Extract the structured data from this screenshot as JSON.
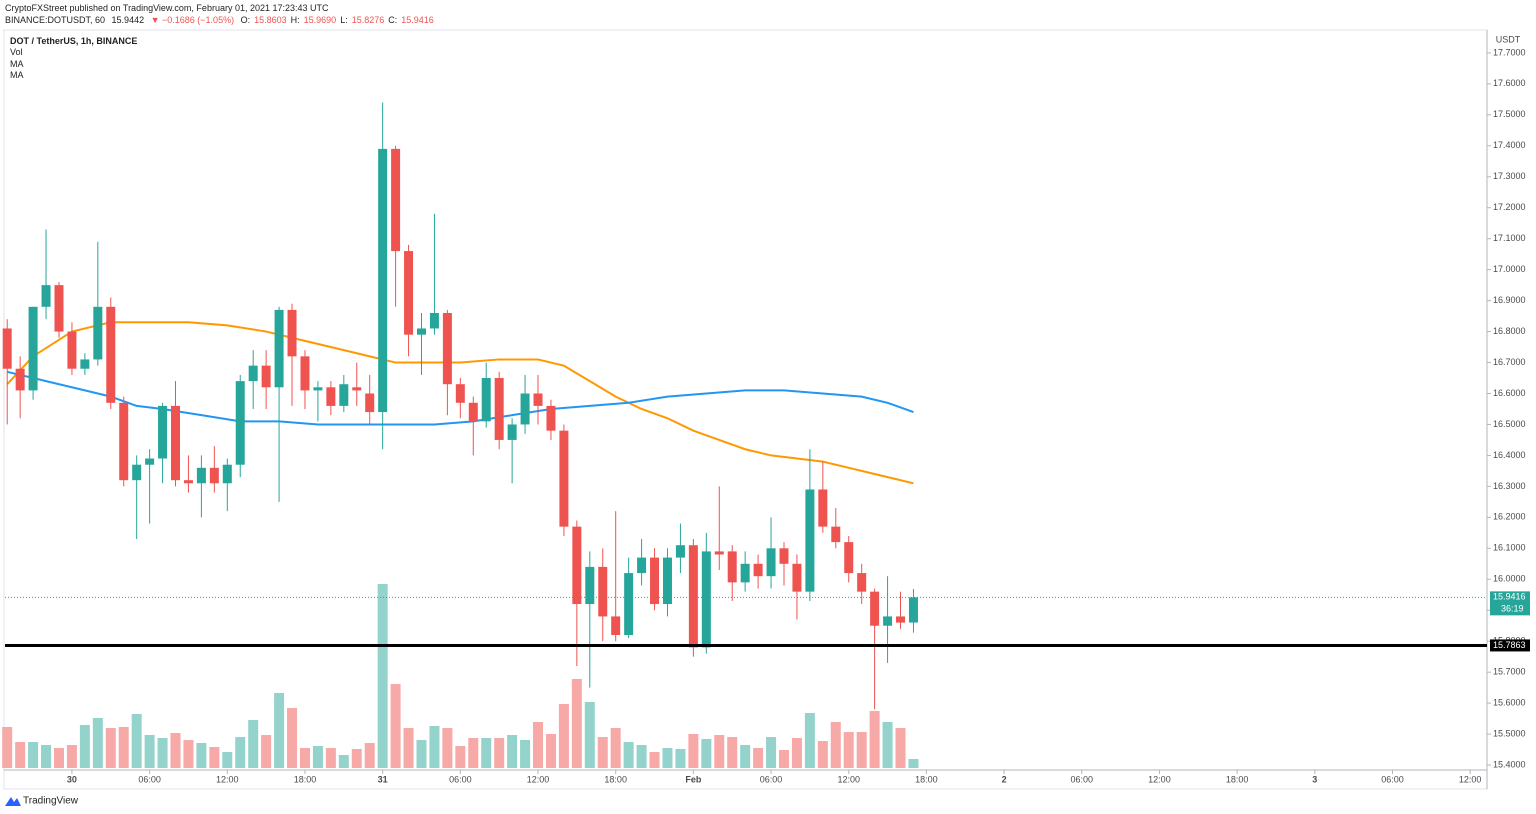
{
  "chart_data": {
    "type": "candlestick",
    "publisher": "CryptoFXStreet published on TradingView.com, February 01, 2021 17:23:43 UTC",
    "symbol": "BINANCE:DOTUSDT, 60",
    "last": "15.9442",
    "change": "▼ −0.1686 (−1.05%)",
    "ohlc_header": [
      {
        "label": "O:",
        "value": "15.8603"
      },
      {
        "label": "H:",
        "value": "15.9690"
      },
      {
        "label": "L:",
        "value": "15.8276"
      },
      {
        "label": "C:",
        "value": "15.9416"
      }
    ],
    "title": "DOT / TetherUS, 1h, BINANCE",
    "indicators": [
      "Vol",
      "MA",
      "MA"
    ],
    "y_unit": "USDT",
    "footer": "TradingView",
    "up_color": "#26a69a",
    "down_color": "#ef5350",
    "volume_up_color": "#94d3cb",
    "volume_down_color": "#f7a9a7",
    "grid": false,
    "x": [
      -5,
      -4,
      -3,
      -2,
      -1,
      0,
      1,
      2,
      3,
      4,
      5,
      6,
      7,
      8,
      9,
      10,
      11,
      12,
      13,
      14,
      15,
      16,
      17,
      18,
      19,
      20,
      21,
      22,
      23,
      24,
      25,
      26,
      27,
      28,
      29,
      30,
      31,
      32,
      33,
      34,
      35,
      36,
      37,
      38,
      39,
      40,
      41,
      42,
      43,
      44,
      45,
      46,
      47,
      48,
      49,
      50,
      51,
      52,
      53,
      54,
      55,
      56,
      57,
      58,
      59,
      60,
      61,
      62,
      63,
      64,
      65
    ],
    "open": [
      16.81,
      16.68,
      16.61,
      16.88,
      16.95,
      16.8,
      16.68,
      16.71,
      16.88,
      16.57,
      16.32,
      16.37,
      16.39,
      16.56,
      16.32,
      16.31,
      16.36,
      16.31,
      16.37,
      16.64,
      16.69,
      16.62,
      16.87,
      16.72,
      16.61,
      16.62,
      16.56,
      16.62,
      16.6,
      16.54,
      17.39,
      17.06,
      16.79,
      16.81,
      16.86,
      16.63,
      16.57,
      16.51,
      16.65,
      16.45,
      16.5,
      16.6,
      16.56,
      16.48,
      16.17,
      15.92,
      16.04,
      15.88,
      15.82,
      16.02,
      16.07,
      15.92,
      16.07,
      16.11,
      15.78,
      16.09,
      16.09,
      15.99,
      16.05,
      16.01,
      16.1,
      16.05,
      15.96,
      16.29,
      16.17,
      16.12,
      16.02,
      15.96,
      15.85,
      15.88,
      15.8603
    ],
    "high": [
      16.84,
      16.72,
      16.88,
      17.13,
      16.96,
      16.83,
      16.73,
      17.09,
      16.91,
      16.59,
      16.4,
      16.42,
      16.57,
      16.64,
      16.4,
      16.4,
      16.43,
      16.39,
      16.66,
      16.74,
      16.74,
      16.88,
      16.89,
      16.74,
      16.64,
      16.64,
      16.66,
      16.7,
      16.66,
      17.54,
      17.4,
      17.08,
      16.86,
      17.18,
      16.87,
      16.65,
      16.59,
      16.7,
      16.67,
      16.52,
      16.66,
      16.66,
      16.58,
      16.5,
      16.19,
      16.09,
      16.1,
      16.22,
      16.07,
      16.13,
      16.1,
      16.1,
      16.18,
      16.13,
      16.15,
      16.3,
      16.11,
      16.09,
      16.08,
      16.2,
      16.12,
      16.08,
      16.42,
      16.38,
      16.23,
      16.14,
      16.05,
      15.97,
      16.01,
      15.96,
      15.969
    ],
    "low": [
      16.5,
      16.52,
      16.58,
      16.84,
      16.78,
      16.66,
      16.66,
      16.69,
      16.55,
      16.3,
      16.13,
      16.18,
      16.31,
      16.3,
      16.28,
      16.2,
      16.28,
      16.22,
      16.33,
      16.55,
      16.55,
      16.25,
      16.56,
      16.55,
      16.51,
      16.53,
      16.54,
      16.56,
      16.5,
      16.42,
      16.88,
      16.72,
      16.66,
      16.79,
      16.53,
      16.52,
      16.4,
      16.49,
      16.42,
      16.31,
      16.47,
      16.5,
      16.45,
      16.14,
      15.72,
      15.65,
      15.8,
      15.8,
      15.81,
      15.98,
      15.9,
      15.88,
      16.02,
      15.75,
      15.76,
      16.03,
      15.93,
      15.96,
      15.97,
      15.97,
      15.98,
      15.87,
      15.93,
      16.15,
      16.1,
      15.99,
      15.92,
      15.58,
      15.73,
      15.84,
      15.8276
    ],
    "close": [
      16.68,
      16.61,
      16.88,
      16.95,
      16.8,
      16.68,
      16.71,
      16.88,
      16.57,
      16.32,
      16.37,
      16.39,
      16.56,
      16.32,
      16.31,
      16.36,
      16.31,
      16.37,
      16.64,
      16.69,
      16.62,
      16.87,
      16.72,
      16.61,
      16.62,
      16.56,
      16.63,
      16.61,
      16.54,
      17.39,
      17.06,
      16.79,
      16.81,
      16.86,
      16.63,
      16.57,
      16.51,
      16.65,
      16.45,
      16.5,
      16.6,
      16.56,
      16.48,
      16.17,
      15.92,
      16.04,
      15.88,
      15.82,
      16.02,
      16.07,
      15.92,
      16.07,
      16.11,
      15.78,
      16.09,
      16.08,
      15.99,
      16.05,
      16.01,
      16.1,
      16.05,
      15.96,
      16.29,
      16.17,
      16.12,
      16.02,
      15.96,
      15.85,
      15.88,
      15.86,
      15.9416
    ],
    "volume": [
      41,
      26,
      26,
      23,
      20,
      23,
      43,
      50,
      40,
      41,
      54,
      33,
      30,
      35,
      28,
      25,
      21,
      16,
      31,
      48,
      33,
      75,
      60,
      20,
      22,
      20,
      13,
      19,
      25,
      184,
      84,
      40,
      28,
      42,
      40,
      22,
      30,
      30,
      30,
      33,
      28,
      46,
      34,
      64,
      89,
      66,
      31,
      40,
      26,
      23,
      16,
      20,
      19,
      34,
      29,
      33,
      31,
      23,
      20,
      31,
      18,
      30,
      55,
      27,
      46,
      36,
      36,
      57,
      46,
      40,
      9
    ],
    "series": [
      {
        "name": "MA",
        "color": "#ff9800",
        "x": [
          -5,
          -3,
          0,
          3,
          6,
          9,
          12,
          15,
          18,
          21,
          23,
          25,
          27,
          30,
          33,
          36,
          38,
          40,
          42,
          44,
          46,
          48,
          50,
          52,
          54,
          56,
          58,
          60,
          62,
          65
        ],
        "values": [
          16.63,
          16.72,
          16.8,
          16.83,
          16.83,
          16.83,
          16.82,
          16.8,
          16.77,
          16.74,
          16.72,
          16.7,
          16.7,
          16.7,
          16.71,
          16.71,
          16.69,
          16.64,
          16.59,
          16.55,
          16.52,
          16.48,
          16.45,
          16.42,
          16.4,
          16.39,
          16.38,
          16.36,
          16.34,
          16.31
        ]
      },
      {
        "name": "MA",
        "color": "#2196f3",
        "x": [
          -5,
          -2,
          1,
          3,
          5,
          7,
          10,
          13,
          16,
          19,
          22,
          25,
          28,
          31,
          34,
          37,
          40,
          43,
          46,
          49,
          52,
          55,
          58,
          61,
          63,
          65
        ],
        "values": [
          16.67,
          16.64,
          16.61,
          16.59,
          16.56,
          16.55,
          16.53,
          16.51,
          16.51,
          16.5,
          16.5,
          16.5,
          16.5,
          16.51,
          16.53,
          16.55,
          16.56,
          16.57,
          16.59,
          16.6,
          16.61,
          16.61,
          16.6,
          16.59,
          16.57,
          16.54
        ]
      }
    ],
    "hline": {
      "value": 15.7863,
      "label": "15.7863",
      "color": "#000000"
    },
    "last_price": {
      "value": 15.9416,
      "label": "15.9416",
      "countdown": "36:19"
    },
    "xlim": [
      -5.17,
      109.3
    ],
    "ylim": [
      15.384,
      17.774
    ],
    "xticks": [
      {
        "value": 0,
        "label": "30"
      },
      {
        "value": 6,
        "label": "06:00"
      },
      {
        "value": 12,
        "label": "12:00"
      },
      {
        "value": 18,
        "label": "18:00"
      },
      {
        "value": 24,
        "label": "31"
      },
      {
        "value": 30,
        "label": "06:00"
      },
      {
        "value": 36,
        "label": "12:00"
      },
      {
        "value": 42,
        "label": "18:00"
      },
      {
        "value": 48,
        "label": "Feb"
      },
      {
        "value": 54,
        "label": "06:00"
      },
      {
        "value": 60,
        "label": "12:00"
      },
      {
        "value": 66,
        "label": "18:00"
      },
      {
        "value": 72,
        "label": "2"
      },
      {
        "value": 78,
        "label": "06:00"
      },
      {
        "value": 84,
        "label": "12:00"
      },
      {
        "value": 90,
        "label": "18:00"
      },
      {
        "value": 96,
        "label": "3"
      },
      {
        "value": 102,
        "label": "06:00"
      },
      {
        "value": 108,
        "label": "12:00"
      }
    ],
    "yticks": [
      {
        "value": 15.4,
        "label": "15.4000"
      },
      {
        "value": 15.5,
        "label": "15.5000"
      },
      {
        "value": 15.6,
        "label": "15.6000"
      },
      {
        "value": 15.7,
        "label": "15.7000"
      },
      {
        "value": 15.8,
        "label": "15.8000"
      },
      {
        "value": 15.9,
        "label": "15.9000"
      },
      {
        "value": 16.0,
        "label": "16.0000"
      },
      {
        "value": 16.1,
        "label": "16.1000"
      },
      {
        "value": 16.2,
        "label": "16.2000"
      },
      {
        "value": 16.3,
        "label": "16.3000"
      },
      {
        "value": 16.4,
        "label": "16.4000"
      },
      {
        "value": 16.5,
        "label": "16.5000"
      },
      {
        "value": 16.6,
        "label": "16.6000"
      },
      {
        "value": 16.7,
        "label": "16.7000"
      },
      {
        "value": 16.8,
        "label": "16.8000"
      },
      {
        "value": 16.9,
        "label": "16.9000"
      },
      {
        "value": 17.0,
        "label": "17.0000"
      },
      {
        "value": 17.1,
        "label": "17.1000"
      },
      {
        "value": 17.2,
        "label": "17.2000"
      },
      {
        "value": 17.3,
        "label": "17.3000"
      },
      {
        "value": 17.4,
        "label": "17.4000"
      },
      {
        "value": 17.5,
        "label": "17.5000"
      },
      {
        "value": 17.6,
        "label": "17.6000"
      },
      {
        "value": 17.7,
        "label": "17.7000"
      }
    ]
  }
}
